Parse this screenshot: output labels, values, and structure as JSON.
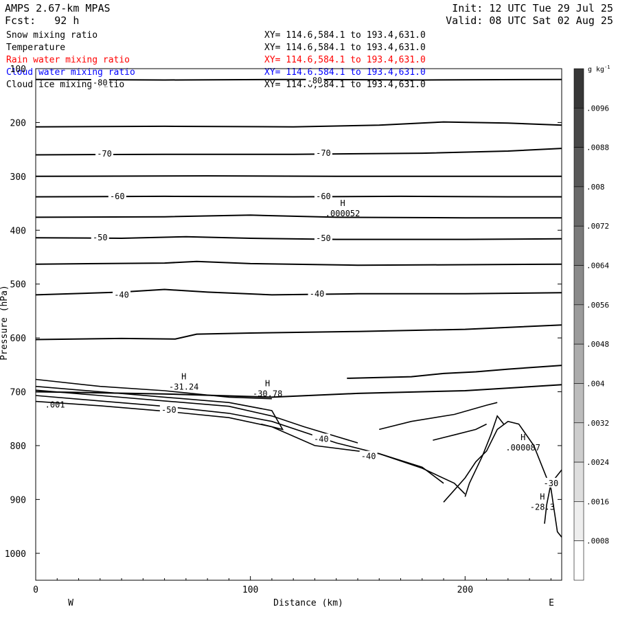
{
  "header": {
    "model": "AMPS 2.67-km MPAS",
    "forecast": "Fcst:   92 h",
    "init": "Init: 12 UTC Tue 29 Jul 25",
    "valid": "Valid: 08 UTC Sat 02 Aug 25"
  },
  "fields": [
    {
      "name": "Snow mixing ratio",
      "xy": "XY= 114.6,584.1 to 193.4,631.0",
      "color": "#000000"
    },
    {
      "name": "Temperature",
      "xy": "XY= 114.6,584.1 to 193.4,631.0",
      "color": "#000000"
    },
    {
      "name": "Rain water mixing ratio",
      "xy": "XY= 114.6,584.1 to 193.4,631.0",
      "color": "#ff0000"
    },
    {
      "name": "Cloud water mixing ratio",
      "xy": "XY= 114.6,584.1 to 193.4,631.0",
      "color": "#0000ff"
    },
    {
      "name": "Cloud ice mixing ratio",
      "xy": "XY= 114.6,584.1 to 193.4,631.0",
      "color": "#000000"
    }
  ],
  "chart_data": {
    "type": "contour",
    "xlabel": "Distance (km)",
    "ylabel": "Pressure (hPa)",
    "xlim": [
      0,
      245
    ],
    "ylim": [
      1050,
      100
    ],
    "x_ticks": [
      0,
      100,
      200
    ],
    "y_ticks": [
      100,
      200,
      300,
      400,
      500,
      600,
      700,
      800,
      900,
      1000
    ],
    "direction_left": "W",
    "direction_right": "E",
    "colorbar": {
      "unit": "g kg",
      "unit_exp": "-1",
      "ticks": [
        ".0096",
        ".0088",
        ".008",
        ".0072",
        ".0064",
        ".0056",
        ".0048",
        ".004",
        ".0032",
        ".0024",
        ".0016",
        ".0008"
      ]
    },
    "isotherms": [
      {
        "points": [
          [
            0,
            120
          ],
          [
            60,
            121
          ],
          [
            120,
            120
          ],
          [
            180,
            121
          ],
          [
            245,
            120
          ]
        ]
      },
      {
        "points": [
          [
            0,
            208
          ],
          [
            60,
            207
          ],
          [
            120,
            208
          ],
          [
            160,
            205
          ],
          [
            190,
            199
          ],
          [
            220,
            201
          ],
          [
            245,
            205
          ]
        ]
      },
      {
        "points": [
          [
            0,
            260
          ],
          [
            60,
            259
          ],
          [
            120,
            259
          ],
          [
            180,
            257
          ],
          [
            220,
            253
          ],
          [
            245,
            248
          ]
        ]
      },
      {
        "points": [
          [
            0,
            300
          ],
          [
            80,
            299
          ],
          [
            140,
            300
          ],
          [
            200,
            300
          ],
          [
            245,
            300
          ]
        ]
      },
      {
        "points": [
          [
            0,
            338
          ],
          [
            60,
            337
          ],
          [
            120,
            338
          ],
          [
            170,
            337
          ],
          [
            220,
            338
          ],
          [
            245,
            338
          ]
        ]
      },
      {
        "points": [
          [
            0,
            376
          ],
          [
            60,
            375
          ],
          [
            100,
            372
          ],
          [
            140,
            376
          ],
          [
            200,
            377
          ],
          [
            245,
            377
          ]
        ]
      },
      {
        "points": [
          [
            0,
            414
          ],
          [
            40,
            415
          ],
          [
            70,
            412
          ],
          [
            100,
            415
          ],
          [
            140,
            417
          ],
          [
            200,
            417
          ],
          [
            245,
            416
          ]
        ]
      },
      {
        "points": [
          [
            0,
            463
          ],
          [
            60,
            461
          ],
          [
            75,
            458
          ],
          [
            100,
            462
          ],
          [
            150,
            465
          ],
          [
            200,
            464
          ],
          [
            245,
            463
          ]
        ]
      },
      {
        "points": [
          [
            0,
            520
          ],
          [
            40,
            515
          ],
          [
            60,
            510
          ],
          [
            80,
            515
          ],
          [
            110,
            520
          ],
          [
            150,
            518
          ],
          [
            200,
            518
          ],
          [
            245,
            516
          ]
        ]
      },
      {
        "points": [
          [
            0,
            603
          ],
          [
            40,
            601
          ],
          [
            65,
            602
          ],
          [
            75,
            593
          ],
          [
            100,
            591
          ],
          [
            150,
            588
          ],
          [
            200,
            584
          ],
          [
            245,
            576
          ]
        ]
      },
      {
        "points": [
          [
            0,
            700
          ],
          [
            60,
            704
          ],
          [
            110,
            710
          ],
          [
            150,
            703
          ],
          [
            200,
            698
          ],
          [
            245,
            687
          ]
        ]
      },
      {
        "points": [
          [
            145,
            675
          ],
          [
            175,
            672
          ],
          [
            190,
            666
          ],
          [
            205,
            663
          ],
          [
            220,
            658
          ],
          [
            245,
            651
          ]
        ]
      }
    ],
    "terrain_contours": [
      {
        "points": [
          [
            0,
            677
          ],
          [
            30,
            690
          ],
          [
            60,
            698
          ],
          [
            90,
            710
          ],
          [
            110,
            713
          ]
        ]
      },
      {
        "points": [
          [
            0,
            690
          ],
          [
            30,
            700
          ],
          [
            60,
            710
          ],
          [
            90,
            720
          ],
          [
            110,
            735
          ],
          [
            115,
            770
          ],
          [
            105,
            760
          ]
        ]
      },
      {
        "points": [
          [
            0,
            697
          ],
          [
            30,
            707
          ],
          [
            60,
            717
          ],
          [
            90,
            727
          ],
          [
            110,
            745
          ],
          [
            125,
            765
          ],
          [
            150,
            795
          ]
        ]
      },
      {
        "points": [
          [
            0,
            707
          ],
          [
            30,
            717
          ],
          [
            60,
            727
          ],
          [
            90,
            740
          ],
          [
            110,
            755
          ],
          [
            140,
            795
          ],
          [
            160,
            815
          ],
          [
            180,
            840
          ],
          [
            190,
            870
          ]
        ]
      },
      {
        "points": [
          [
            0,
            718
          ],
          [
            30,
            726
          ],
          [
            60,
            736
          ],
          [
            90,
            748
          ],
          [
            110,
            765
          ],
          [
            130,
            800
          ],
          [
            160,
            815
          ],
          [
            180,
            842
          ],
          [
            195,
            870
          ],
          [
            200,
            890
          ]
        ]
      },
      {
        "points": [
          [
            160,
            770
          ],
          [
            175,
            755
          ],
          [
            195,
            742
          ],
          [
            210,
            725
          ],
          [
            215,
            720
          ]
        ]
      },
      {
        "points": [
          [
            185,
            790
          ],
          [
            195,
            780
          ],
          [
            205,
            770
          ],
          [
            210,
            760
          ]
        ]
      },
      {
        "points": [
          [
            200,
            895
          ],
          [
            202,
            870
          ],
          [
            208,
            820
          ],
          [
            212,
            780
          ],
          [
            215,
            745
          ],
          [
            218,
            760
          ]
        ]
      },
      {
        "points": [
          [
            190,
            905
          ],
          [
            200,
            860
          ],
          [
            205,
            830
          ],
          [
            210,
            810
          ],
          [
            215,
            770
          ],
          [
            220,
            755
          ],
          [
            225,
            760
          ],
          [
            232,
            800
          ],
          [
            240,
            880
          ],
          [
            243,
            960
          ],
          [
            245,
            970
          ]
        ]
      },
      {
        "points": [
          [
            237,
            945
          ],
          [
            238,
            910
          ],
          [
            240,
            870
          ],
          [
            244,
            850
          ],
          [
            245,
            845
          ]
        ]
      }
    ],
    "temp_labels": [
      {
        "text": "-80",
        "x": 30,
        "y": 126
      },
      {
        "text": "-80",
        "x": 130,
        "y": 122
      },
      {
        "text": "-70",
        "x": 32,
        "y": 258
      },
      {
        "text": "-70",
        "x": 134,
        "y": 257
      },
      {
        "text": "-60",
        "x": 38,
        "y": 337
      },
      {
        "text": "-60",
        "x": 134,
        "y": 337
      },
      {
        "text": "-50",
        "x": 30,
        "y": 414
      },
      {
        "text": "-50",
        "x": 134,
        "y": 415
      },
      {
        "text": "-40",
        "x": 40,
        "y": 520
      },
      {
        "text": "-40",
        "x": 131,
        "y": 518
      },
      {
        "text": "-50",
        "x": 62,
        "y": 734
      },
      {
        "text": "-40",
        "x": 133,
        "y": 788
      },
      {
        "text": "-40",
        "x": 155,
        "y": 820
      },
      {
        "text": "-30",
        "x": 240,
        "y": 870
      }
    ],
    "extrema": [
      {
        "symbol": "H",
        "value": ".000052",
        "x": 143,
        "y": 355
      },
      {
        "symbol": "H",
        "value": "-31.24",
        "x": 69,
        "y": 677
      },
      {
        "symbol": "H",
        "value": "-30.78",
        "x": 108,
        "y": 690
      },
      {
        "symbol": "H",
        "value": ".000087",
        "x": 227,
        "y": 790
      },
      {
        "symbol": "H",
        "value": "-28.3",
        "x": 236,
        "y": 900
      }
    ],
    "other_labels": [
      {
        "text": ".001",
        "x": 9,
        "y": 724
      }
    ]
  }
}
